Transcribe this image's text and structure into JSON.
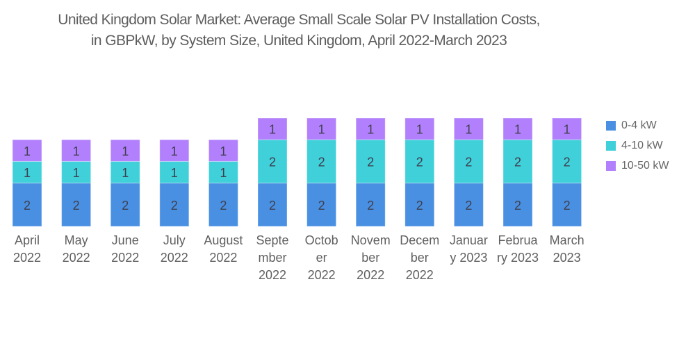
{
  "chart_data": {
    "type": "bar",
    "stacked": true,
    "title": "United Kingdom Solar Market: Average Small Scale Solar PV Installation Costs, in GBPkW, by System Size, United Kingdom, April 2022-March 2023",
    "title_lines": [
      "United Kingdom Solar Market: Average Small Scale Solar PV Installation Costs,",
      "in GBPkW, by System Size, United Kingdom, April 2022-March 2023"
    ],
    "xlabel": "",
    "ylabel": "",
    "ylim": [
      0,
      5
    ],
    "grid": false,
    "legend_position": "right",
    "categories": [
      "April 2022",
      "May 2022",
      "June 2022",
      "July 2022",
      "August 2022",
      "September 2022",
      "October 2022",
      "November 2022",
      "December 2022",
      "January 2023",
      "February 2023",
      "March 2023"
    ],
    "category_label_lines": [
      [
        "April",
        "2022"
      ],
      [
        "May",
        "2022"
      ],
      [
        "June",
        "2022"
      ],
      [
        "July",
        "2022"
      ],
      [
        "August",
        "2022"
      ],
      [
        "Septe",
        "mber",
        "2022"
      ],
      [
        "Octob",
        "er",
        "2022"
      ],
      [
        "Novem",
        "ber",
        "2022"
      ],
      [
        "Decem",
        "ber",
        "2022"
      ],
      [
        "Januar",
        "y 2023"
      ],
      [
        "Februa",
        "ry 2023"
      ],
      [
        "March",
        "2023"
      ]
    ],
    "series": [
      {
        "name": "0-4 kW",
        "color": "#4a90e2",
        "values": [
          2,
          2,
          2,
          2,
          2,
          2,
          2,
          2,
          2,
          2,
          2,
          2
        ]
      },
      {
        "name": "4-10 kW",
        "color": "#3fd0d9",
        "values": [
          1,
          1,
          1,
          1,
          1,
          2,
          2,
          2,
          2,
          2,
          2,
          2
        ]
      },
      {
        "name": "10-50 kW",
        "color": "#b280fc",
        "values": [
          1,
          1,
          1,
          1,
          1,
          1,
          1,
          1,
          1,
          1,
          1,
          1
        ]
      }
    ]
  }
}
